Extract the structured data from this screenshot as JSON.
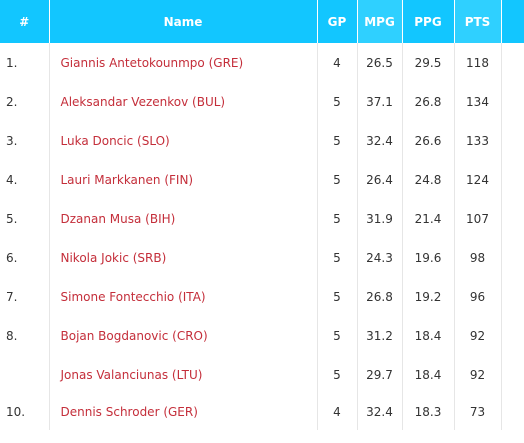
{
  "table": {
    "headers": {
      "rank": "#",
      "name": "Name",
      "gp": "GP",
      "mpg": "MPG",
      "ppg": "PPG",
      "pts": "PTS"
    },
    "rows": [
      {
        "rank": "1.",
        "name": "Giannis Antetokounmpo (GRE)",
        "gp": "4",
        "mpg": "26.5",
        "ppg": "29.5",
        "pts": "118"
      },
      {
        "rank": "2.",
        "name": "Aleksandar Vezenkov (BUL)",
        "gp": "5",
        "mpg": "37.1",
        "ppg": "26.8",
        "pts": "134"
      },
      {
        "rank": "3.",
        "name": "Luka Doncic (SLO)",
        "gp": "5",
        "mpg": "32.4",
        "ppg": "26.6",
        "pts": "133"
      },
      {
        "rank": "4.",
        "name": "Lauri Markkanen (FIN)",
        "gp": "5",
        "mpg": "26.4",
        "ppg": "24.8",
        "pts": "124"
      },
      {
        "rank": "5.",
        "name": "Dzanan Musa (BIH)",
        "gp": "5",
        "mpg": "31.9",
        "ppg": "21.4",
        "pts": "107"
      },
      {
        "rank": "6.",
        "name": "Nikola Jokic (SRB)",
        "gp": "5",
        "mpg": "24.3",
        "ppg": "19.6",
        "pts": "98"
      },
      {
        "rank": "7.",
        "name": "Simone Fontecchio (ITA)",
        "gp": "5",
        "mpg": "26.8",
        "ppg": "19.2",
        "pts": "96"
      },
      {
        "rank": "8.",
        "name": "Bojan Bogdanovic (CRO)",
        "gp": "5",
        "mpg": "31.2",
        "ppg": "18.4",
        "pts": "92"
      },
      {
        "rank": "",
        "name": "Jonas Valanciunas (LTU)",
        "gp": "5",
        "mpg": "29.7",
        "ppg": "18.4",
        "pts": "92"
      },
      {
        "rank": "10.",
        "name": "Dennis Schroder (GER)",
        "gp": "4",
        "mpg": "32.4",
        "ppg": "18.3",
        "pts": "73"
      }
    ]
  },
  "colors": {
    "header_bg": "#12c6ff",
    "header_bg_alt": "#2fd0ff",
    "header_text": "#ffffff",
    "name_link": "#c42e3a",
    "body_text": "#333333",
    "grid_line": "#e6e6e6"
  }
}
